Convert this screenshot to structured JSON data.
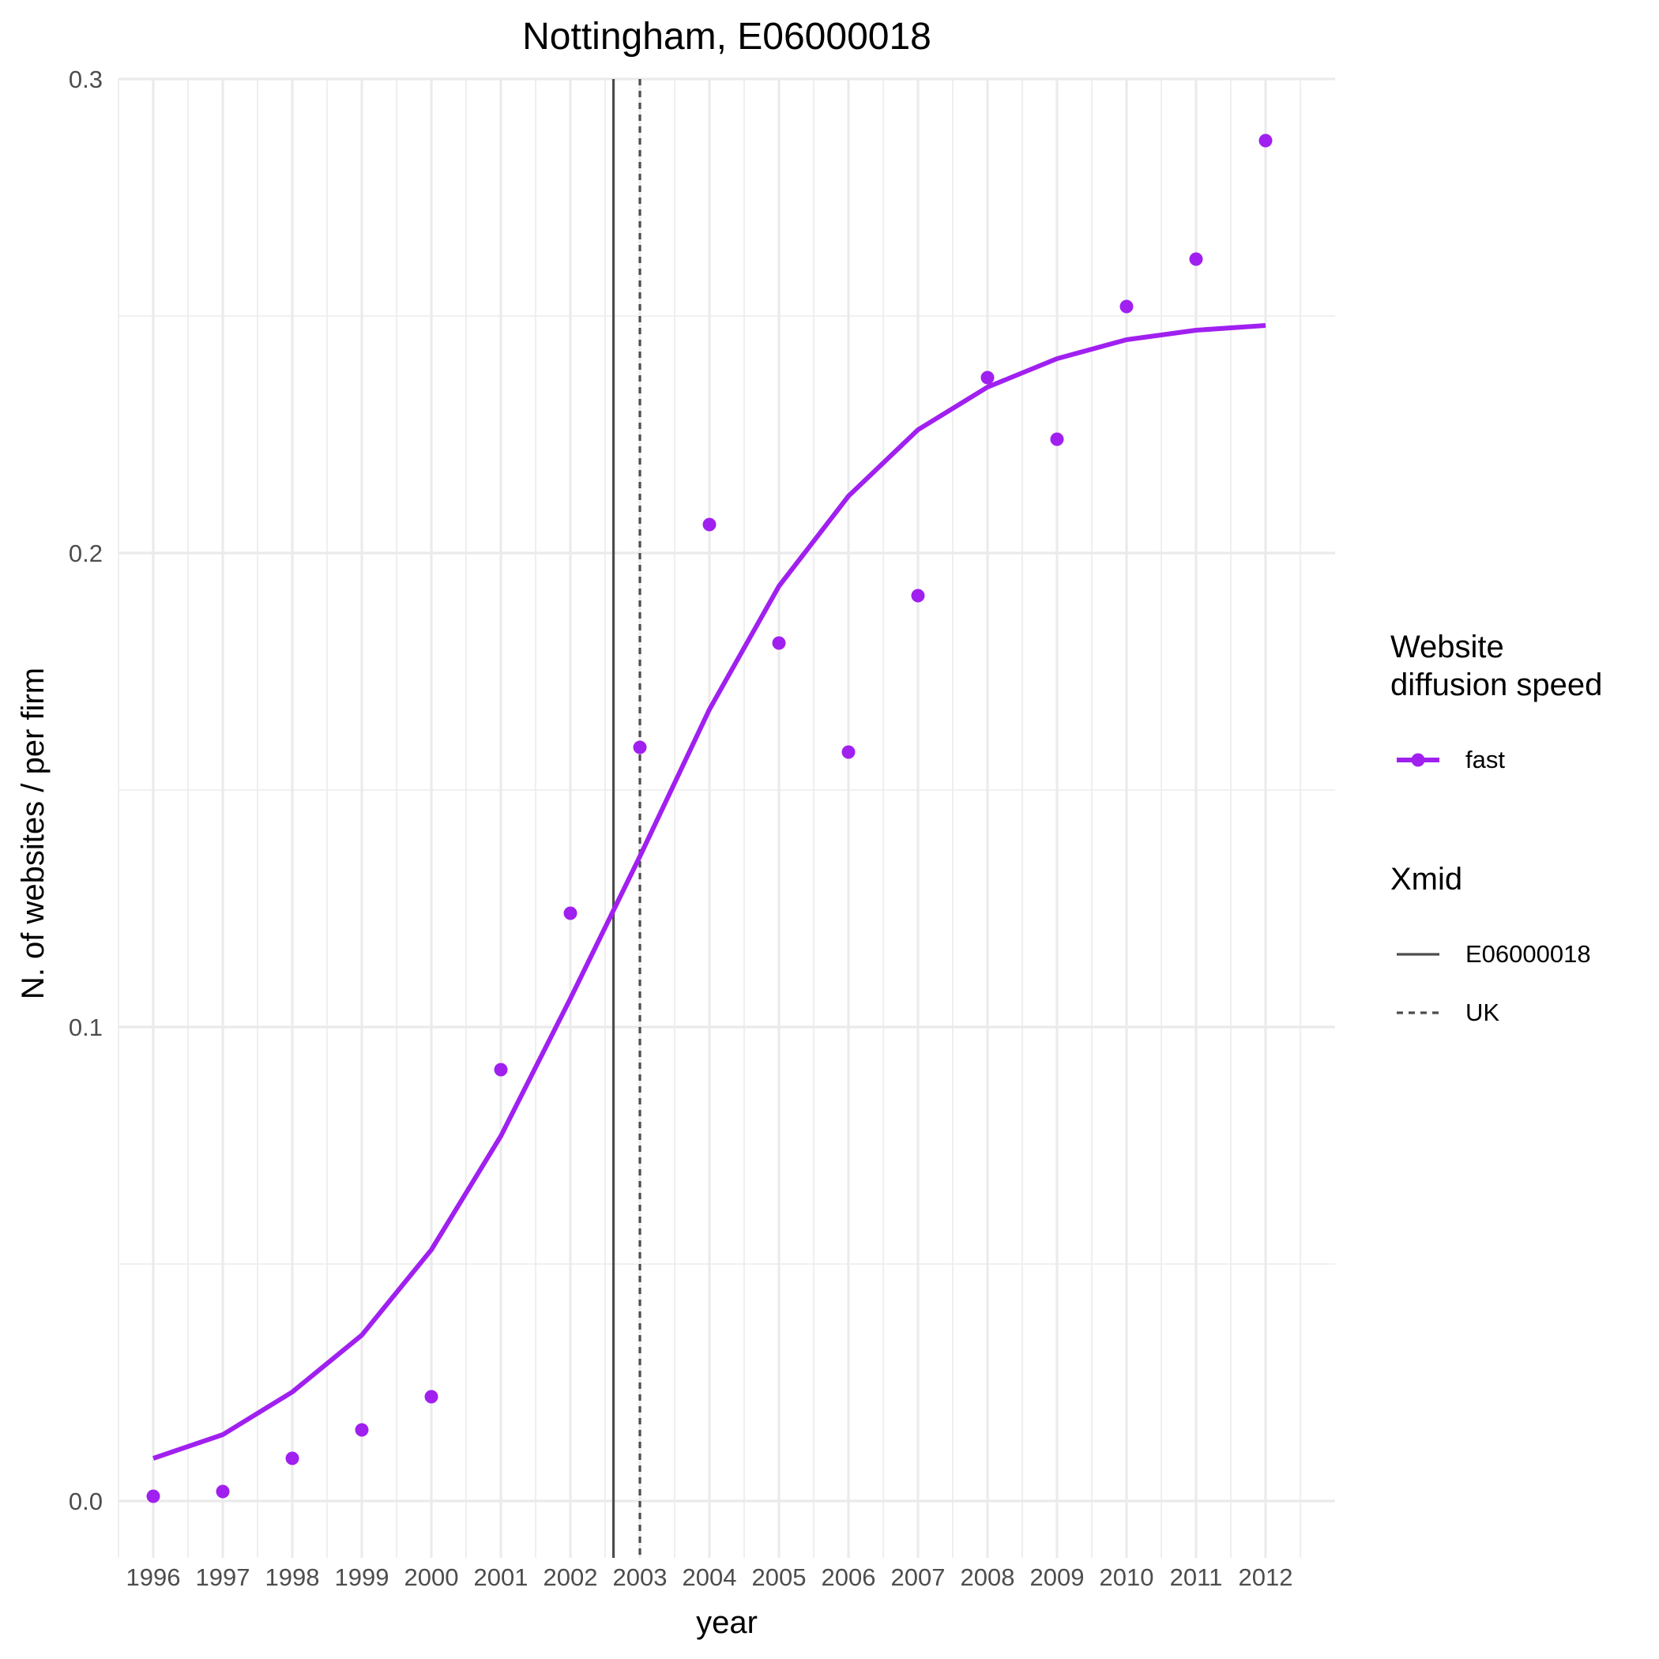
{
  "chart_data": {
    "type": "line",
    "title": "Nottingham, E06000018",
    "xlabel": "year",
    "ylabel": "N. of websites / per firm",
    "x": [
      1996,
      1997,
      1998,
      1999,
      2000,
      2001,
      2002,
      2003,
      2004,
      2005,
      2006,
      2007,
      2008,
      2009,
      2010,
      2011,
      2012
    ],
    "xlim": [
      1995.5,
      2013.0
    ],
    "ylim": [
      -0.012,
      0.3
    ],
    "yticks": [
      0.0,
      0.1,
      0.2,
      0.3
    ],
    "ytick_labels": [
      "0.0",
      "0.1",
      "0.2",
      "0.3"
    ],
    "grid": true,
    "series": [
      {
        "name": "fast",
        "kind": "fitted-line",
        "color": "#a020f0",
        "values": [
          0.009,
          0.014,
          0.023,
          0.035,
          0.053,
          0.077,
          0.106,
          0.136,
          0.167,
          0.193,
          0.212,
          0.226,
          0.235,
          0.241,
          0.245,
          0.247,
          0.248
        ]
      },
      {
        "name": "fast",
        "kind": "points",
        "color": "#a020f0",
        "values": [
          0.001,
          0.002,
          0.009,
          0.015,
          0.022,
          0.091,
          0.124,
          0.159,
          0.206,
          0.181,
          0.158,
          0.191,
          0.237,
          0.224,
          0.252,
          0.262,
          0.287
        ]
      }
    ],
    "vlines": [
      {
        "name": "E06000018",
        "x": 2002.62,
        "style": "solid",
        "color": "#4d4d4d"
      },
      {
        "name": "UK",
        "x": 2003.0,
        "style": "dotted",
        "color": "#4d4d4d"
      }
    ],
    "legend": {
      "placement": "right",
      "groups": [
        {
          "title_lines": [
            "Website",
            "diffusion speed"
          ],
          "items": [
            {
              "label": "fast",
              "key": "line-point",
              "color": "#a020f0"
            }
          ]
        },
        {
          "title_lines": [
            "Xmid"
          ],
          "items": [
            {
              "label": "E06000018",
              "key": "solid"
            },
            {
              "label": "UK",
              "key": "dotted"
            }
          ]
        }
      ]
    }
  }
}
